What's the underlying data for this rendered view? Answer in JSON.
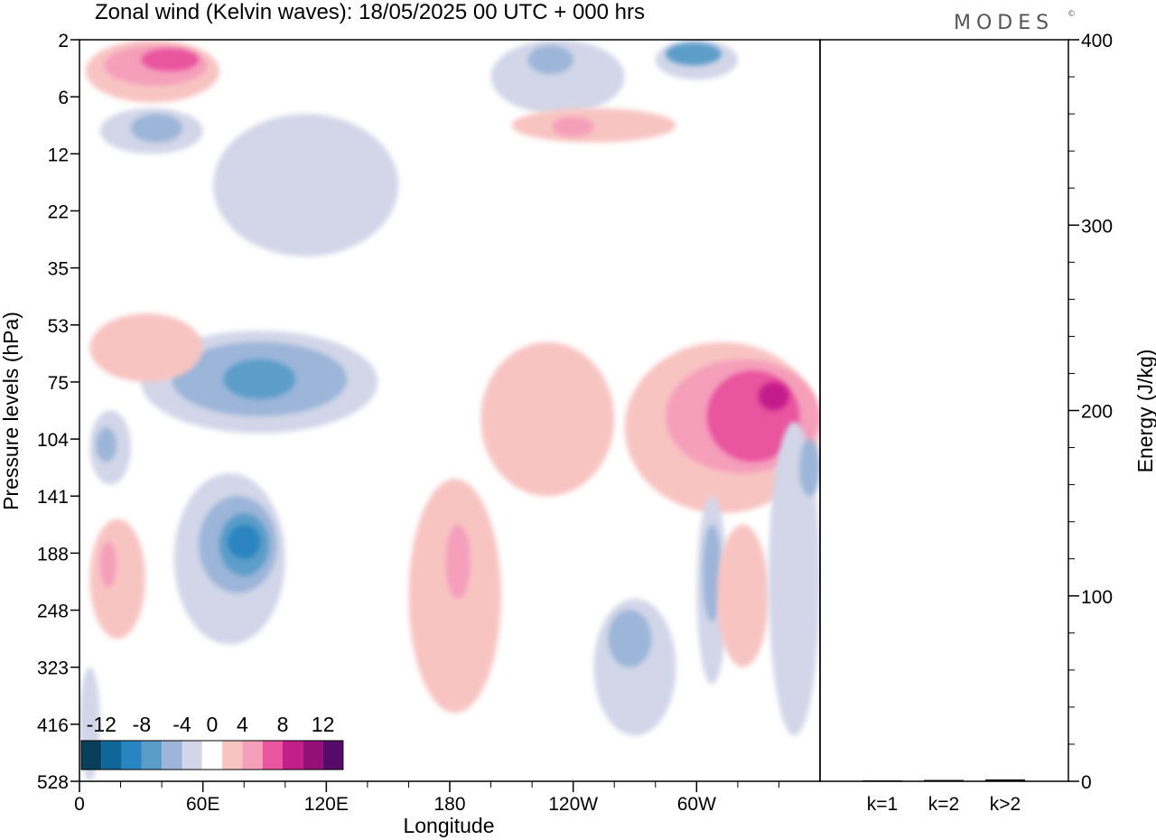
{
  "title": "Zonal wind (Kelvin waves):  18/05/2025  00 UTC  + 000 hrs",
  "logo": "MODES",
  "logo_mark": "©",
  "chart_data": [
    {
      "type": "heatmap",
      "title": "Zonal wind (Kelvin waves):  18/05/2025  00 UTC  + 000 hrs",
      "xlabel": "Longitude",
      "ylabel": "Pressure levels (hPa)",
      "x_ticks": [
        "0",
        "60E",
        "120E",
        "180",
        "120W",
        "60W"
      ],
      "x_tick_degrees": [
        0,
        60,
        120,
        180,
        240,
        300
      ],
      "xlim": [
        0,
        360
      ],
      "y_ticks": [
        "2",
        "6",
        "12",
        "22",
        "35",
        "53",
        "75",
        "104",
        "141",
        "188",
        "248",
        "323",
        "416",
        "528"
      ],
      "y_order": "top-to-bottom",
      "colorbar": {
        "labels": [
          "-12",
          "-8",
          "-4",
          "0",
          "4",
          "8",
          "12"
        ],
        "levels": [
          -14,
          -12,
          -10,
          -8,
          -6,
          -4,
          -2,
          2,
          4,
          6,
          8,
          10,
          12,
          14
        ],
        "colors": [
          "#0a3f5c",
          "#0f6699",
          "#2985c0",
          "#5b9dc9",
          "#9cb5d9",
          "#d2d6e8",
          "#ffffff",
          "#f8c4c2",
          "#f59fbb",
          "#e9559f",
          "#c31f8a",
          "#921078",
          "#560a6a"
        ]
      },
      "contour_regions": [
        {
          "level": 2,
          "lon": [
            3,
            68
          ],
          "lev_idx": [
            0.0,
            1.1
          ]
        },
        {
          "level": 4,
          "lon": [
            12,
            62
          ],
          "lev_idx": [
            0.1,
            0.8
          ]
        },
        {
          "level": 6,
          "lon": [
            30,
            58
          ],
          "lev_idx": [
            0.15,
            0.55
          ]
        },
        {
          "level": -2,
          "lon": [
            10,
            60
          ],
          "lev_idx": [
            1.2,
            2.0
          ]
        },
        {
          "level": -4,
          "lon": [
            25,
            50
          ],
          "lev_idx": [
            1.3,
            1.8
          ]
        },
        {
          "level": -2,
          "lon": [
            200,
            265
          ],
          "lev_idx": [
            0.0,
            1.3
          ]
        },
        {
          "level": -4,
          "lon": [
            218,
            240
          ],
          "lev_idx": [
            0.1,
            0.6
          ]
        },
        {
          "level": -2,
          "lon": [
            280,
            320
          ],
          "lev_idx": [
            0.0,
            0.7
          ]
        },
        {
          "level": -6,
          "lon": [
            285,
            312
          ],
          "lev_idx": [
            0.05,
            0.45
          ]
        },
        {
          "level": 2,
          "lon": [
            210,
            290
          ],
          "lev_idx": [
            1.2,
            1.8
          ]
        },
        {
          "level": 4,
          "lon": [
            230,
            250
          ],
          "lev_idx": [
            1.35,
            1.7
          ]
        },
        {
          "level": -2,
          "lon": [
            65,
            155
          ],
          "lev_idx": [
            1.3,
            3.8
          ]
        },
        {
          "level": -2,
          "lon": [
            30,
            145
          ],
          "lev_idx": [
            5.1,
            6.9
          ]
        },
        {
          "level": -4,
          "lon": [
            45,
            130
          ],
          "lev_idx": [
            5.3,
            6.6
          ]
        },
        {
          "level": -6,
          "lon": [
            70,
            105
          ],
          "lev_idx": [
            5.6,
            6.3
          ]
        },
        {
          "level": -2,
          "lon": [
            5,
            25
          ],
          "lev_idx": [
            6.5,
            7.8
          ]
        },
        {
          "level": -4,
          "lon": [
            8,
            18
          ],
          "lev_idx": [
            6.8,
            7.4
          ]
        },
        {
          "level": 2,
          "lon": [
            5,
            60
          ],
          "lev_idx": [
            4.8,
            6.0
          ]
        },
        {
          "level": -2,
          "lon": [
            46,
            100
          ],
          "lev_idx": [
            7.6,
            10.6
          ]
        },
        {
          "level": -4,
          "lon": [
            58,
            96
          ],
          "lev_idx": [
            8.0,
            9.7
          ]
        },
        {
          "level": -6,
          "lon": [
            68,
            92
          ],
          "lev_idx": [
            8.3,
            9.4
          ]
        },
        {
          "level": -8,
          "lon": [
            72,
            88
          ],
          "lev_idx": [
            8.5,
            9.1
          ]
        },
        {
          "level": 2,
          "lon": [
            5,
            32
          ],
          "lev_idx": [
            8.4,
            10.5
          ]
        },
        {
          "level": 4,
          "lon": [
            10,
            18
          ],
          "lev_idx": [
            8.8,
            9.6
          ]
        },
        {
          "level": 2,
          "lon": [
            160,
            205
          ],
          "lev_idx": [
            7.7,
            11.8
          ]
        },
        {
          "level": 4,
          "lon": [
            178,
            190
          ],
          "lev_idx": [
            8.5,
            9.8
          ]
        },
        {
          "level": 2,
          "lon": [
            195,
            260
          ],
          "lev_idx": [
            5.3,
            8.0
          ]
        },
        {
          "level": 2,
          "lon": [
            265,
            360
          ],
          "lev_idx": [
            5.3,
            8.3
          ]
        },
        {
          "level": 4,
          "lon": [
            285,
            360
          ],
          "lev_idx": [
            5.6,
            7.6
          ]
        },
        {
          "level": 6,
          "lon": [
            305,
            350
          ],
          "lev_idx": [
            5.8,
            7.4
          ]
        },
        {
          "level": 8,
          "lon": [
            330,
            345
          ],
          "lev_idx": [
            6.0,
            6.5
          ]
        },
        {
          "level": -2,
          "lon": [
            300,
            315
          ],
          "lev_idx": [
            8.0,
            11.3
          ]
        },
        {
          "level": -4,
          "lon": [
            303,
            312
          ],
          "lev_idx": [
            8.5,
            10.2
          ]
        },
        {
          "level": -2,
          "lon": [
            250,
            290
          ],
          "lev_idx": [
            9.8,
            12.2
          ]
        },
        {
          "level": -4,
          "lon": [
            257,
            278
          ],
          "lev_idx": [
            10.0,
            11.0
          ]
        },
        {
          "level": 2,
          "lon": [
            310,
            335
          ],
          "lev_idx": [
            8.5,
            11.0
          ]
        },
        {
          "level": -2,
          "lon": [
            335,
            360
          ],
          "lev_idx": [
            6.7,
            12.2
          ]
        },
        {
          "level": -4,
          "lon": [
            350,
            360
          ],
          "lev_idx": [
            7.0,
            8.0
          ]
        },
        {
          "level": -2,
          "lon": [
            0,
            10
          ],
          "lev_idx": [
            11.0,
            13.0
          ]
        }
      ]
    },
    {
      "type": "bar",
      "categories": [
        "k=1",
        "k=2",
        "k>2"
      ],
      "values": [
        0.5,
        0.7,
        1.0
      ],
      "ylabel": "Energy (J/kg)",
      "ylim": [
        0,
        400
      ],
      "y_ticks": [
        "0",
        "100",
        "200",
        "300",
        "400"
      ]
    }
  ]
}
